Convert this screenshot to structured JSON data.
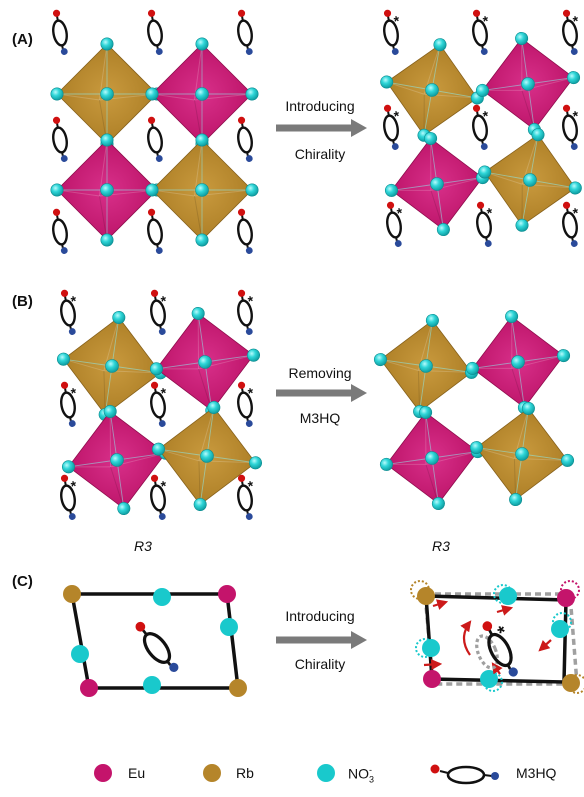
{
  "panels": {
    "a": {
      "label": "(A)",
      "arrow_line1": "Introducing",
      "arrow_line2": "Chirality"
    },
    "b": {
      "label": "(B)",
      "arrow_line1": "Removing",
      "arrow_line2": "M3HQ",
      "space_group_left": "R3",
      "space_group_right": "R3"
    },
    "c": {
      "label": "(C)",
      "arrow_line1": "Introducing",
      "arrow_line2": "Chirality"
    }
  },
  "chirality_mark": "*",
  "legend": {
    "eu": "Eu",
    "rb": "Rb",
    "no3_base": "NO",
    "no3_sub": "3",
    "no3_sup": "-",
    "m3hq": "M3HQ"
  },
  "colors": {
    "eu": "#c4146b",
    "rb": "#b5852a",
    "no3": "#19c9cc",
    "arrow": "#7a7a7a",
    "red_dot": "#d01010",
    "blue_dot": "#2a4a9a",
    "displacement_arrow": "#cc1a1a",
    "dashed_outline": "#a0a0a0"
  }
}
